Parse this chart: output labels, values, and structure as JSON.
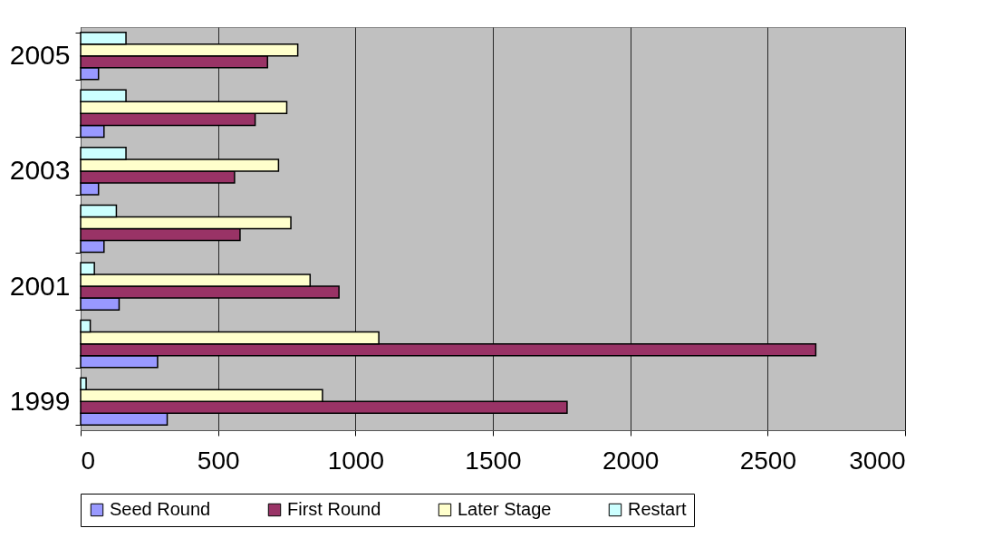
{
  "chart_data": {
    "type": "bar",
    "orientation": "horizontal",
    "categories": [
      "2005",
      null,
      "2003",
      null,
      "2001",
      null,
      "1999"
    ],
    "series": [
      {
        "name": "Seed Round",
        "color": "#9999ff",
        "values": [
          65,
          85,
          65,
          85,
          140,
          280,
          315
        ]
      },
      {
        "name": "First Round",
        "color": "#993366",
        "values": [
          680,
          635,
          560,
          580,
          940,
          2675,
          1770
        ]
      },
      {
        "name": "Later Stage",
        "color": "#ffffcc",
        "values": [
          790,
          750,
          720,
          765,
          835,
          1085,
          880
        ]
      },
      {
        "name": "Restart",
        "color": "#ccffff",
        "values": [
          165,
          165,
          165,
          130,
          50,
          35,
          20
        ]
      }
    ],
    "xlim": [
      0,
      3000
    ],
    "xticks": [
      0,
      500,
      1000,
      1500,
      2000,
      2500,
      3000
    ],
    "grid": "x",
    "legend": "bottom"
  }
}
